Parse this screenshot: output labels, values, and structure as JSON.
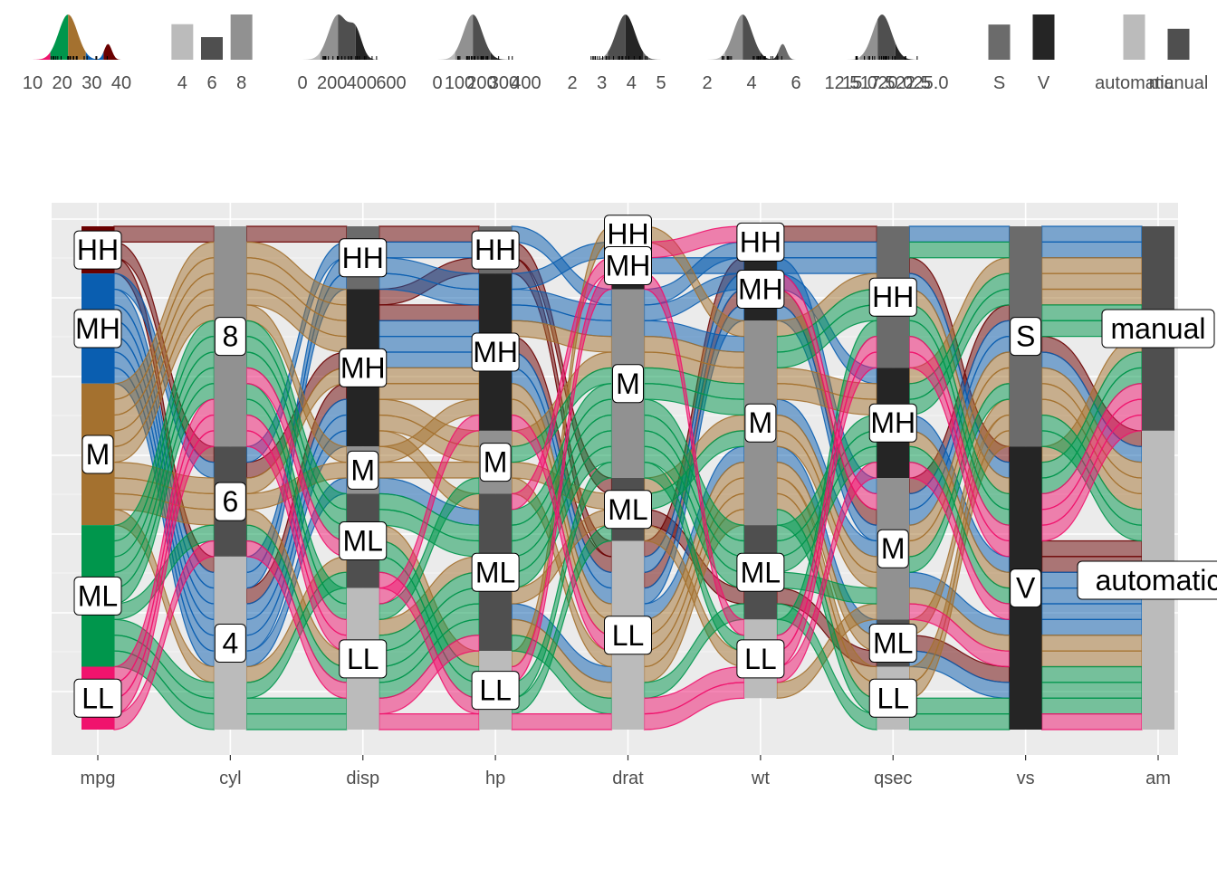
{
  "chart_data": {
    "type": "alluvial",
    "axes": [
      "mpg",
      "cyl",
      "disp",
      "hp",
      "drat",
      "wt",
      "qsec",
      "vs",
      "am"
    ],
    "strata": {
      "mpg": [
        {
          "label": "HH",
          "count": 3
        },
        {
          "label": "MH",
          "count": 7
        },
        {
          "label": "M",
          "count": 9
        },
        {
          "label": "ML",
          "count": 9
        },
        {
          "label": "LL",
          "count": 4
        }
      ],
      "cyl": [
        {
          "label": "8",
          "count": 14
        },
        {
          "label": "6",
          "count": 7
        },
        {
          "label": "4",
          "count": 11
        }
      ],
      "disp": [
        {
          "label": "HH",
          "count": 4
        },
        {
          "label": "MH",
          "count": 10
        },
        {
          "label": "M",
          "count": 3
        },
        {
          "label": "ML",
          "count": 6
        },
        {
          "label": "LL",
          "count": 9
        }
      ],
      "hp": [
        {
          "label": "HH",
          "count": 3
        },
        {
          "label": "MH",
          "count": 10
        },
        {
          "label": "M",
          "count": 4
        },
        {
          "label": "ML",
          "count": 10
        },
        {
          "label": "LL",
          "count": 5
        }
      ],
      "drat": [
        {
          "label": "HH",
          "count": 1
        },
        {
          "label": "MH",
          "count": 3
        },
        {
          "label": "M",
          "count": 12
        },
        {
          "label": "ML",
          "count": 4
        },
        {
          "label": "LL",
          "count": 12
        }
      ],
      "wt": [
        {
          "label": "HH",
          "count": 2
        },
        {
          "label": "MH",
          "count": 4
        },
        {
          "label": "M",
          "count": 13
        },
        {
          "label": "ML",
          "count": 6
        },
        {
          "label": "LL",
          "count": 5
        }
      ],
      "qsec": [
        {
          "label": "HH",
          "count": 9
        },
        {
          "label": "MH",
          "count": 7
        },
        {
          "label": "M",
          "count": 9
        },
        {
          "label": "ML",
          "count": 3
        },
        {
          "label": "LL",
          "count": 4
        }
      ],
      "vs": [
        {
          "label": "S",
          "count": 14
        },
        {
          "label": "V",
          "count": 18
        }
      ],
      "am": [
        {
          "label": "manual",
          "count": 13
        },
        {
          "label": "automatic",
          "count": 19
        }
      ]
    },
    "flow_color_by": "mpg",
    "flow_colors": {
      "HH": "#6a0000",
      "MH": "#0a5eb0",
      "M": "#a4712f",
      "ML": "#00964c",
      "LL": "#f0136d"
    },
    "stratum_fills": [
      "#6b6b6b",
      "#252525",
      "#919191",
      "#4f4f4f",
      "#bbbbbb"
    ],
    "top_panels": [
      {
        "axis": "mpg",
        "kind": "density",
        "tick_labels": [
          "10",
          "20",
          "30",
          "40"
        ],
        "range": [
          8,
          38
        ]
      },
      {
        "axis": "cyl",
        "kind": "bar",
        "tick_labels": [
          "4",
          "6",
          "8"
        ],
        "values": [
          11,
          7,
          14
        ]
      },
      {
        "axis": "disp",
        "kind": "density",
        "tick_labels": [
          "0",
          "200",
          "400",
          "600"
        ],
        "range": [
          0,
          600
        ]
      },
      {
        "axis": "hp",
        "kind": "density",
        "tick_labels": [
          "0",
          "100",
          "200",
          "300",
          "400"
        ],
        "range": [
          0,
          400
        ]
      },
      {
        "axis": "drat",
        "kind": "density",
        "tick_labels": [
          "2",
          "3",
          "4",
          "5"
        ],
        "range": [
          2,
          5
        ]
      },
      {
        "axis": "wt",
        "kind": "density",
        "tick_labels": [
          "2",
          "4",
          "6"
        ],
        "range": [
          1,
          6
        ]
      },
      {
        "axis": "qsec",
        "kind": "density",
        "tick_labels": [
          "12.5",
          "15.0",
          "17.5",
          "20.0",
          "22.5",
          "25.0"
        ],
        "range": [
          12.5,
          25
        ]
      },
      {
        "axis": "vs",
        "kind": "bar",
        "tick_labels": [
          "S",
          "V"
        ],
        "values": [
          14,
          18
        ]
      },
      {
        "axis": "am",
        "kind": "bar",
        "tick_labels": [
          "automatic",
          "manual"
        ],
        "values": [
          19,
          13
        ]
      }
    ],
    "xlabel": "",
    "ylabel": "",
    "grid": true,
    "legend": "none"
  }
}
